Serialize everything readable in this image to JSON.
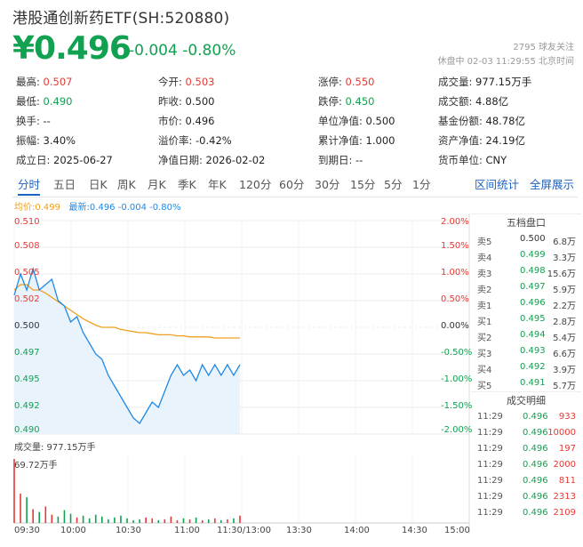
{
  "header": {
    "title": "港股通创新药ETF(SH:520880)",
    "price": "¥0.496",
    "change": "-0.004 -0.80%",
    "followers": "2795 球友关注",
    "status": "休盘中 02-03 11:29:55 北京时间"
  },
  "stats": [
    [
      {
        "label": "最高:",
        "value": "0.507",
        "color": "up"
      },
      {
        "label": "今开:",
        "value": "0.503",
        "color": "up"
      },
      {
        "label": "涨停:",
        "value": "0.550",
        "color": "up"
      },
      {
        "label": "成交量:",
        "value": "977.15万手",
        "color": ""
      }
    ],
    [
      {
        "label": "最低:",
        "value": "0.490",
        "color": "down"
      },
      {
        "label": "昨收:",
        "value": "0.500",
        "color": ""
      },
      {
        "label": "跌停:",
        "value": "0.450",
        "color": "down"
      },
      {
        "label": "成交额:",
        "value": "4.88亿",
        "color": ""
      }
    ],
    [
      {
        "label": "换手:",
        "value": "--",
        "color": ""
      },
      {
        "label": "市价:",
        "value": "0.496",
        "color": ""
      },
      {
        "label": "单位净值:",
        "value": "0.500",
        "color": ""
      },
      {
        "label": "基金份额:",
        "value": "48.78亿",
        "color": ""
      }
    ],
    [
      {
        "label": "振幅:",
        "value": "3.40%",
        "color": ""
      },
      {
        "label": "溢价率:",
        "value": "-0.42%",
        "color": ""
      },
      {
        "label": "累计净值:",
        "value": "1.000",
        "color": ""
      },
      {
        "label": "资产净值:",
        "value": "24.19亿",
        "color": ""
      }
    ],
    [
      {
        "label": "成立日:",
        "value": "2025-06-27",
        "color": ""
      },
      {
        "label": "净值日期:",
        "value": "2026-02-02",
        "color": ""
      },
      {
        "label": "到期日:",
        "value": "--",
        "color": ""
      },
      {
        "label": "货币单位:",
        "value": "CNY",
        "color": ""
      }
    ]
  ],
  "tabs": [
    "分时",
    "五日",
    "日K",
    "周K",
    "月K",
    "季K",
    "年K",
    "120分",
    "60分",
    "30分",
    "15分",
    "5分",
    "1分"
  ],
  "tabs_right": [
    "区间统计",
    "全屏展示"
  ],
  "legend": {
    "avg": "均价:0.499",
    "last": "最新:0.496 -0.004 -0.80%"
  },
  "volume": {
    "label": "成交量: 977.15万手",
    "max": "69.72万手"
  },
  "order_book": {
    "title": "五档盘口",
    "rows": [
      {
        "label": "卖5",
        "price": "0.500",
        "vol": "6.8万",
        "color": "flat"
      },
      {
        "label": "卖4",
        "price": "0.499",
        "vol": "3.3万",
        "color": "down"
      },
      {
        "label": "卖3",
        "price": "0.498",
        "vol": "15.6万",
        "color": "down"
      },
      {
        "label": "卖2",
        "price": "0.497",
        "vol": "5.9万",
        "color": "down"
      },
      {
        "label": "卖1",
        "price": "0.496",
        "vol": "2.2万",
        "color": "down"
      },
      {
        "label": "买1",
        "price": "0.495",
        "vol": "2.8万",
        "color": "down"
      },
      {
        "label": "买2",
        "price": "0.494",
        "vol": "5.4万",
        "color": "down"
      },
      {
        "label": "买3",
        "price": "0.493",
        "vol": "6.6万",
        "color": "down"
      },
      {
        "label": "买4",
        "price": "0.492",
        "vol": "3.9万",
        "color": "down"
      },
      {
        "label": "买5",
        "price": "0.491",
        "vol": "5.7万",
        "color": "down"
      }
    ],
    "trades_title": "成交明细",
    "trades": [
      {
        "time": "11:29",
        "price": "0.496",
        "vol": "933"
      },
      {
        "time": "11:29",
        "price": "0.496",
        "vol": "10000"
      },
      {
        "time": "11:29",
        "price": "0.496",
        "vol": "197"
      },
      {
        "time": "11:29",
        "price": "0.496",
        "vol": "2000"
      },
      {
        "time": "11:29",
        "price": "0.496",
        "vol": "811"
      },
      {
        "time": "11:29",
        "price": "0.496",
        "vol": "2313"
      },
      {
        "time": "11:29",
        "price": "0.496",
        "vol": "2109"
      }
    ]
  },
  "colors": {
    "up": "#e53935",
    "down": "#12a150",
    "price_line": "#1e88e5",
    "avg_line": "#f0a020",
    "accent": "#1e63c4"
  },
  "chart_data": {
    "type": "line",
    "y_left_ticks": [
      "0.510",
      "0.508",
      "0.505",
      "0.502",
      "0.500",
      "0.497",
      "0.495",
      "0.492",
      "0.490"
    ],
    "y_right_ticks": [
      "2.00%",
      "1.50%",
      "1.00%",
      "0.50%",
      "0.00%",
      "-0.50%",
      "-1.00%",
      "-1.50%",
      "-2.00%"
    ],
    "x_ticks": [
      "09:30",
      "10:00",
      "10:30",
      "11:00",
      "11:30/13:00",
      "13:30",
      "14:00",
      "14:30",
      "15:00"
    ],
    "ylim": [
      0.49,
      0.51
    ],
    "prev_close": 0.5,
    "series": [
      {
        "name": "最新",
        "values": [
          0.503,
          0.505,
          0.5035,
          0.5055,
          0.5035,
          0.504,
          0.5045,
          0.5025,
          0.502,
          0.5005,
          0.501,
          0.4995,
          0.4985,
          0.4975,
          0.497,
          0.4955,
          0.4945,
          0.4935,
          0.4925,
          0.4915,
          0.491,
          0.492,
          0.493,
          0.4925,
          0.494,
          0.4955,
          0.4965,
          0.4955,
          0.496,
          0.495,
          0.4965,
          0.4955,
          0.4965,
          0.4955,
          0.4965,
          0.4955,
          0.4965
        ]
      },
      {
        "name": "均价",
        "values": [
          0.5035,
          0.504,
          0.504,
          0.5035,
          0.5035,
          0.5032,
          0.5028,
          0.5024,
          0.502,
          0.5016,
          0.5012,
          0.5008,
          0.5005,
          0.5002,
          0.5,
          0.5,
          0.5,
          0.4998,
          0.4997,
          0.4996,
          0.4995,
          0.4995,
          0.4994,
          0.4993,
          0.4993,
          0.4993,
          0.4992,
          0.4992,
          0.4991,
          0.4991,
          0.4991,
          0.4991,
          0.499,
          0.499,
          0.499,
          0.499,
          0.499
        ]
      }
    ],
    "volume": [
      69.72,
      32,
      28,
      15,
      12,
      18,
      9,
      7,
      14,
      10,
      6,
      8,
      5,
      9,
      7,
      4,
      6,
      8,
      5,
      3,
      4,
      6,
      5,
      3,
      4,
      7,
      3,
      5,
      4,
      6,
      3,
      4,
      5,
      3,
      4,
      5,
      8
    ]
  }
}
